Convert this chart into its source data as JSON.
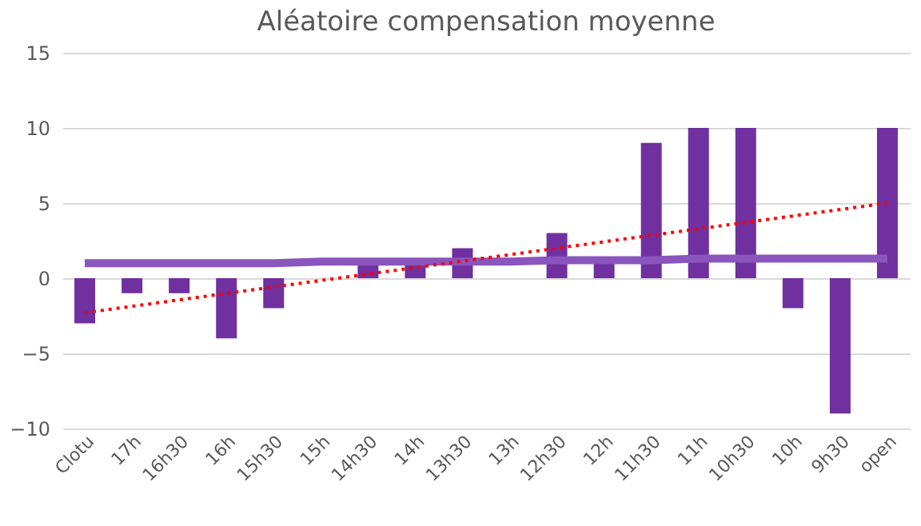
{
  "chart_data": {
    "type": "bar",
    "title": "Aléatoire compensation moyenne",
    "categories": [
      "Clotu",
      "17h",
      "16h30",
      "16h",
      "15h30",
      "15h",
      "14h30",
      "14h",
      "13h30",
      "13h",
      "12h30",
      "12h",
      "11h30",
      "11h",
      "10h30",
      "10h",
      "9h30",
      "open"
    ],
    "series": [
      {
        "color": "#7030a0",
        "values": [
          -3,
          -1,
          -1,
          -4,
          -2,
          0,
          1,
          1,
          2,
          0,
          3,
          1,
          9,
          10,
          10,
          -2,
          -9,
          10
        ]
      },
      {
        "type": "line",
        "color": "#8a55bd",
        "line_style": "solid",
        "values": [
          1.0,
          1.0,
          1.0,
          1.0,
          1.0,
          1.1,
          1.1,
          1.1,
          1.1,
          1.1,
          1.2,
          1.2,
          1.2,
          1.3,
          1.3,
          1.3,
          1.3,
          1.3
        ]
      },
      {
        "type": "line",
        "color": "#ff0000",
        "line_style": "dotted",
        "x": [
          "Clotu",
          "open"
        ],
        "values": [
          -2.3,
          5.0
        ]
      }
    ],
    "ylim": [
      -10,
      15
    ],
    "yticks": [
      -10,
      -5,
      0,
      5,
      10,
      15
    ],
    "grid": "y"
  }
}
